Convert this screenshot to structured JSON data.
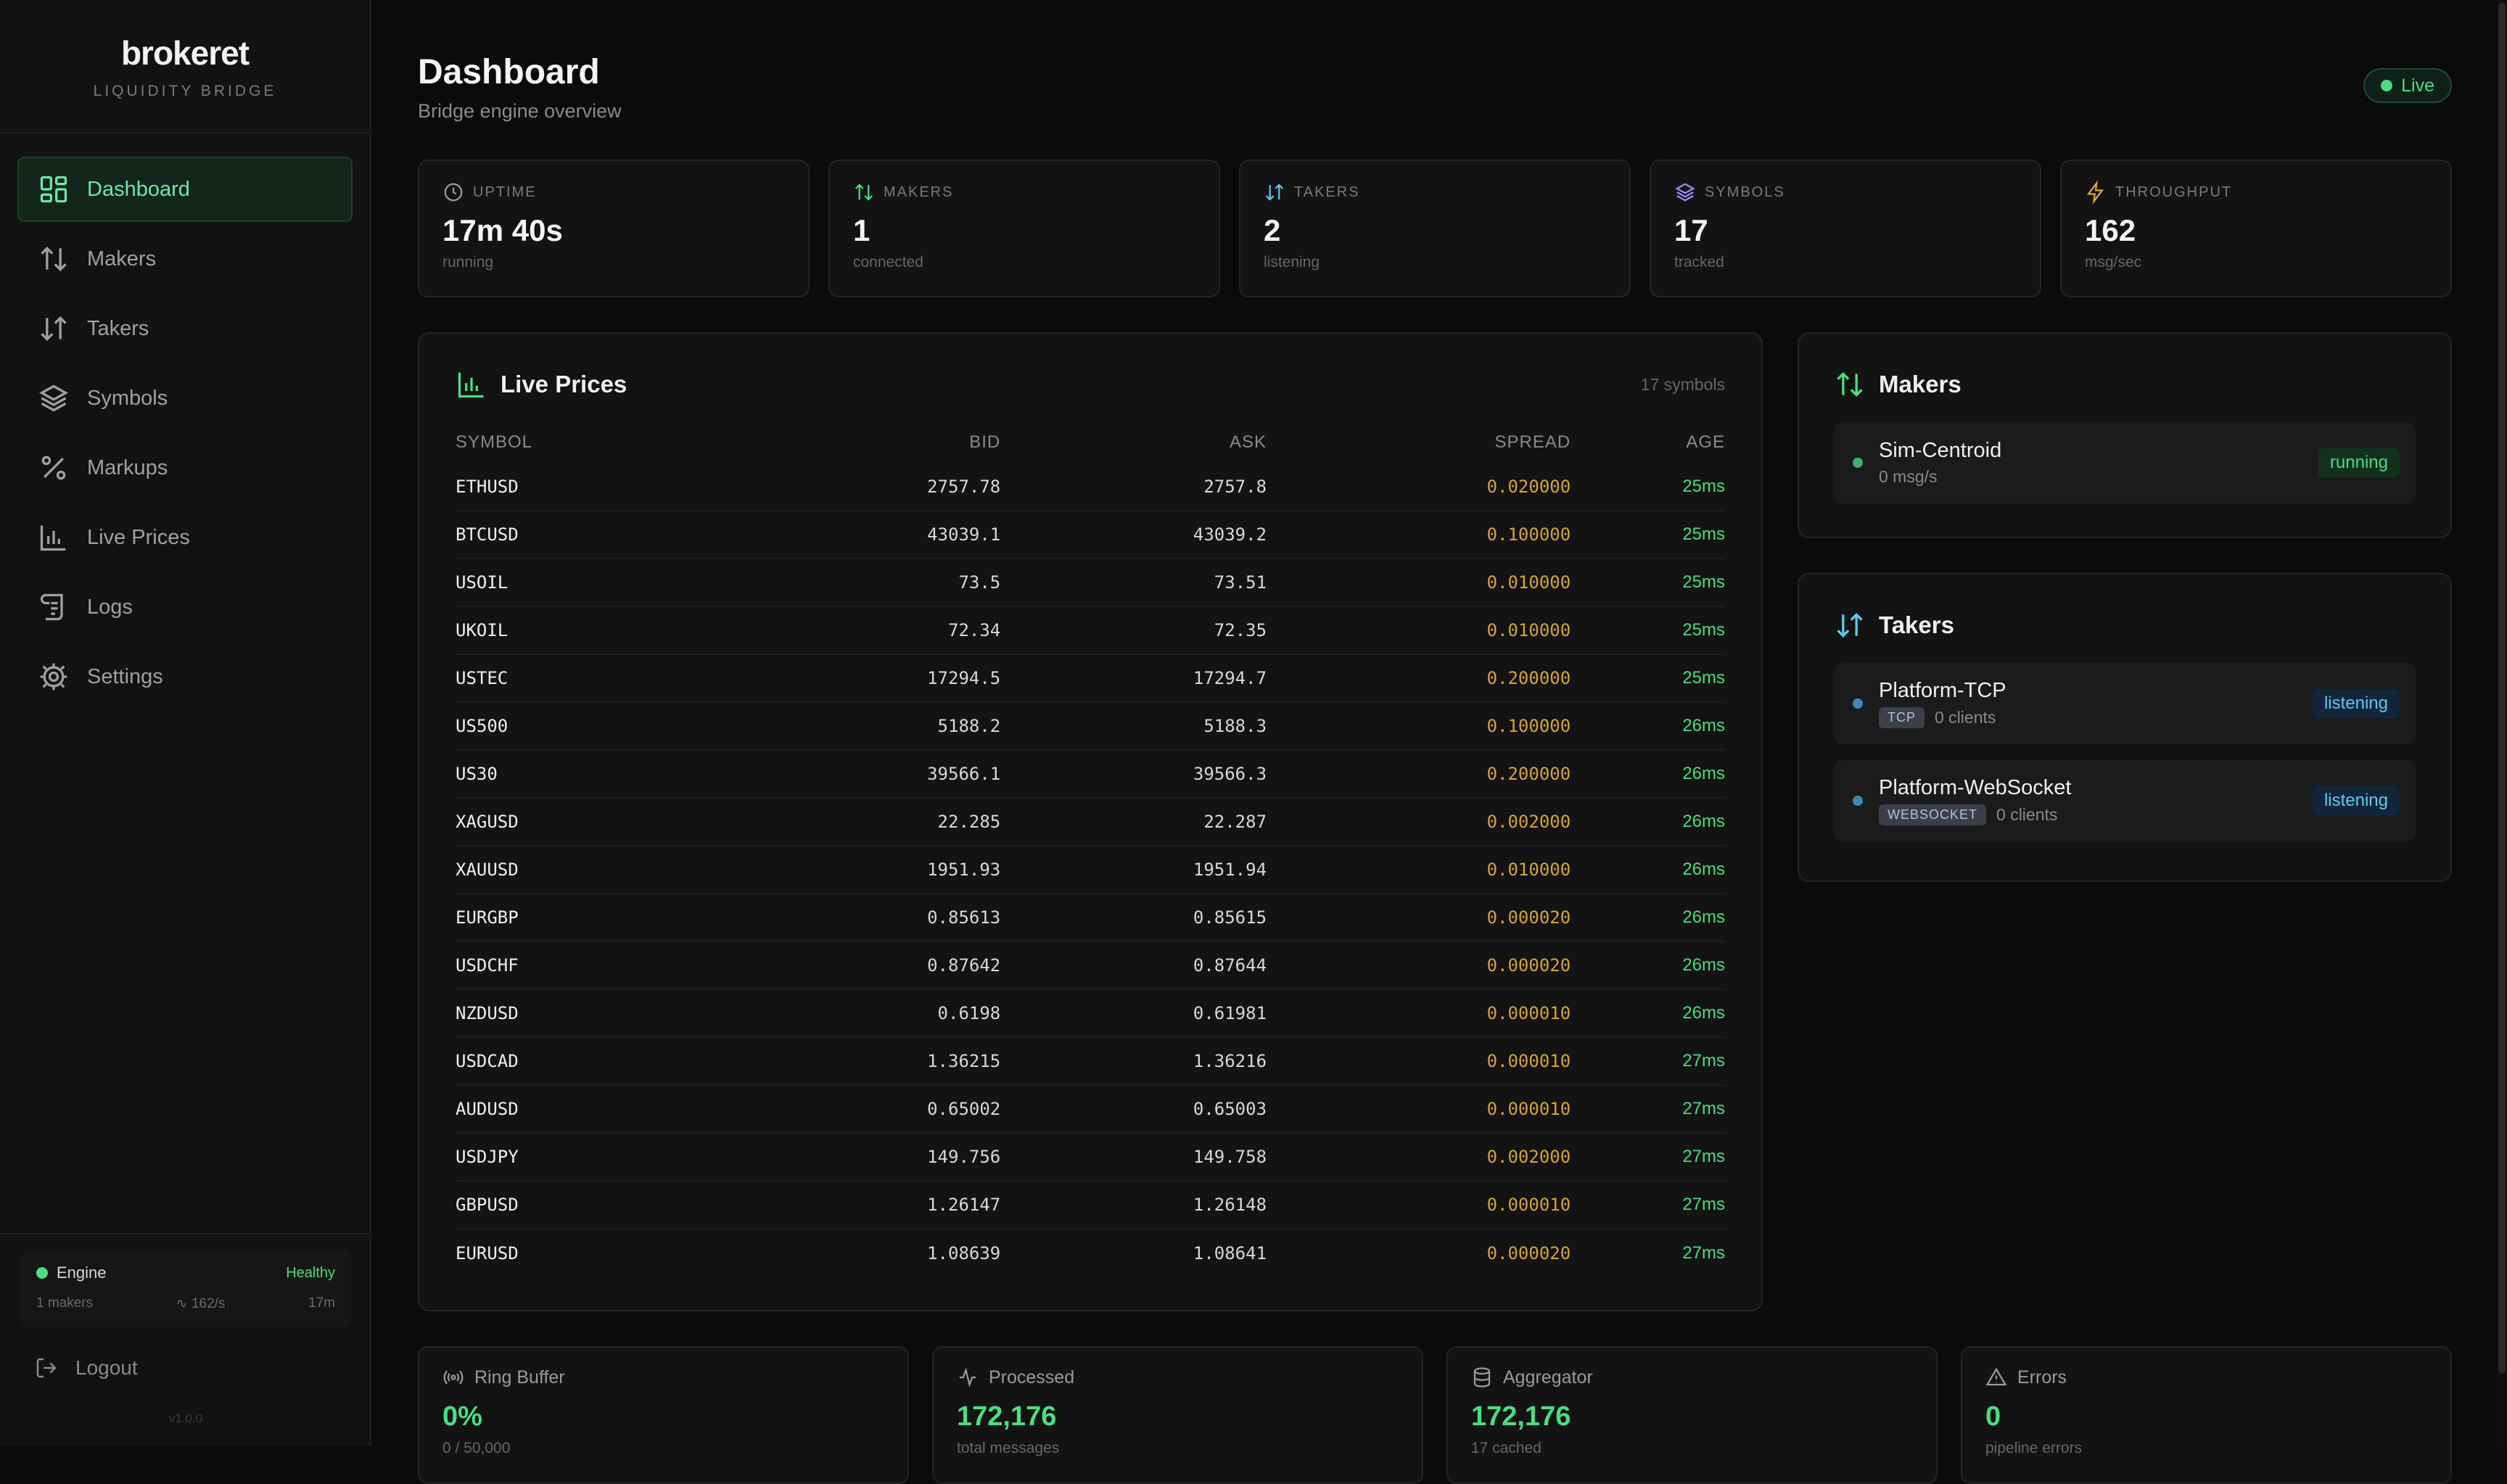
{
  "brand": {
    "name": "brokeret",
    "subtitle": "LIQUIDITY BRIDGE"
  },
  "nav": [
    {
      "label": "Dashboard",
      "icon": "dashboard-icon",
      "active": true
    },
    {
      "label": "Makers",
      "icon": "arrows-up-down-icon"
    },
    {
      "label": "Takers",
      "icon": "arrows-swap-icon"
    },
    {
      "label": "Symbols",
      "icon": "layers-icon"
    },
    {
      "label": "Markups",
      "icon": "percent-icon"
    },
    {
      "label": "Live Prices",
      "icon": "bar-chart-icon"
    },
    {
      "label": "Logs",
      "icon": "scroll-icon"
    },
    {
      "label": "Settings",
      "icon": "gear-icon"
    }
  ],
  "engine": {
    "label": "Engine",
    "status": "Healthy",
    "makers": "1 makers",
    "rate": "162/s",
    "uptime": "17m"
  },
  "logout_label": "Logout",
  "version": "v1.0.0",
  "header": {
    "title": "Dashboard",
    "subtitle": "Bridge engine overview",
    "live_label": "Live"
  },
  "stats": [
    {
      "label": "UPTIME",
      "value": "17m 40s",
      "note": "running",
      "icon": "clock-icon",
      "color": "#9a9a9a"
    },
    {
      "label": "MAKERS",
      "value": "1",
      "note": "connected",
      "icon": "arrows-up-down-icon",
      "color": "#4ade80"
    },
    {
      "label": "TAKERS",
      "value": "2",
      "note": "listening",
      "icon": "arrows-swap-icon",
      "color": "#60c8f0"
    },
    {
      "label": "SYMBOLS",
      "value": "17",
      "note": "tracked",
      "icon": "layers-icon",
      "color": "#a78bfa"
    },
    {
      "label": "THROUGHPUT",
      "value": "162",
      "note": "msg/sec",
      "icon": "bolt-icon",
      "color": "#e0a840"
    }
  ],
  "prices": {
    "title": "Live Prices",
    "count_label": "17 symbols",
    "columns": [
      "SYMBOL",
      "BID",
      "ASK",
      "SPREAD",
      "AGE"
    ],
    "rows": [
      [
        "ETHUSD",
        "2757.78",
        "2757.8",
        "0.020000",
        "25ms"
      ],
      [
        "BTCUSD",
        "43039.1",
        "43039.2",
        "0.100000",
        "25ms"
      ],
      [
        "USOIL",
        "73.5",
        "73.51",
        "0.010000",
        "25ms"
      ],
      [
        "UKOIL",
        "72.34",
        "72.35",
        "0.010000",
        "25ms"
      ],
      [
        "USTEC",
        "17294.5",
        "17294.7",
        "0.200000",
        "25ms"
      ],
      [
        "US500",
        "5188.2",
        "5188.3",
        "0.100000",
        "26ms"
      ],
      [
        "US30",
        "39566.1",
        "39566.3",
        "0.200000",
        "26ms"
      ],
      [
        "XAGUSD",
        "22.285",
        "22.287",
        "0.002000",
        "26ms"
      ],
      [
        "XAUUSD",
        "1951.93",
        "1951.94",
        "0.010000",
        "26ms"
      ],
      [
        "EURGBP",
        "0.85613",
        "0.85615",
        "0.000020",
        "26ms"
      ],
      [
        "USDCHF",
        "0.87642",
        "0.87644",
        "0.000020",
        "26ms"
      ],
      [
        "NZDUSD",
        "0.6198",
        "0.61981",
        "0.000010",
        "26ms"
      ],
      [
        "USDCAD",
        "1.36215",
        "1.36216",
        "0.000010",
        "27ms"
      ],
      [
        "AUDUSD",
        "0.65002",
        "0.65003",
        "0.000010",
        "27ms"
      ],
      [
        "USDJPY",
        "149.756",
        "149.758",
        "0.002000",
        "27ms"
      ],
      [
        "GBPUSD",
        "1.26147",
        "1.26148",
        "0.000010",
        "27ms"
      ],
      [
        "EURUSD",
        "1.08639",
        "1.08641",
        "0.000020",
        "27ms"
      ]
    ]
  },
  "makers": {
    "title": "Makers",
    "items": [
      {
        "name": "Sim-Centroid",
        "sub": "0 msg/s",
        "status": "running"
      }
    ]
  },
  "takers": {
    "title": "Takers",
    "items": [
      {
        "name": "Platform-TCP",
        "tag": "TCP",
        "sub": "0 clients",
        "status": "listening"
      },
      {
        "name": "Platform-WebSocket",
        "tag": "WEBSOCKET",
        "sub": "0 clients",
        "status": "listening"
      }
    ]
  },
  "bottom": [
    {
      "label": "Ring Buffer",
      "value": "0%",
      "note": "0 / 50,000",
      "icon": "broadcast-icon"
    },
    {
      "label": "Processed",
      "value": "172,176",
      "note": "total messages",
      "icon": "activity-icon"
    },
    {
      "label": "Aggregator",
      "value": "172,176",
      "note": "17 cached",
      "icon": "database-icon"
    },
    {
      "label": "Errors",
      "value": "0",
      "note": "pipeline errors",
      "icon": "warning-icon"
    }
  ]
}
